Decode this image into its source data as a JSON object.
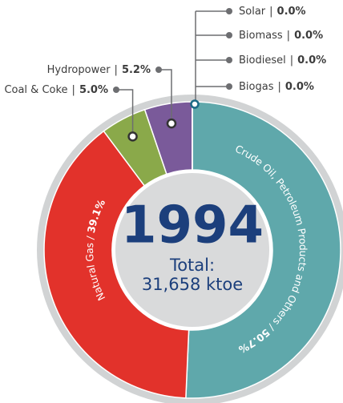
{
  "chart_data": {
    "type": "donut",
    "title": "1994",
    "total": {
      "label": "Total:",
      "value": 31658,
      "value_label": "31,658 ktoe"
    },
    "separator": "|",
    "inner_separator": "/",
    "slices": [
      {
        "name": "Crude Oil, Petroleum Products and Others",
        "value": 50.7,
        "value_label": "50.7%",
        "color": "#5fa8ab"
      },
      {
        "name": "Natural Gas",
        "value": 39.1,
        "value_label": "39.1%",
        "color": "#e2322b"
      },
      {
        "name": "Coal & Coke",
        "value": 5.0,
        "value_label": "5.0%",
        "color": "#8aa94a"
      },
      {
        "name": "Hydropower",
        "value": 5.2,
        "value_label": "5.2%",
        "color": "#7a5a9a"
      },
      {
        "name": "Solar",
        "value": 0.0,
        "value_label": "0.0%",
        "color": "#6d6e71"
      },
      {
        "name": "Biomass",
        "value": 0.0,
        "value_label": "0.0%",
        "color": "#6d6e71"
      },
      {
        "name": "Biodiesel",
        "value": 0.0,
        "value_label": "0.0%",
        "color": "#6d6e71"
      },
      {
        "name": "Biogas",
        "value": 0.0,
        "value_label": "0.0%",
        "color": "#6d6e71"
      }
    ]
  }
}
